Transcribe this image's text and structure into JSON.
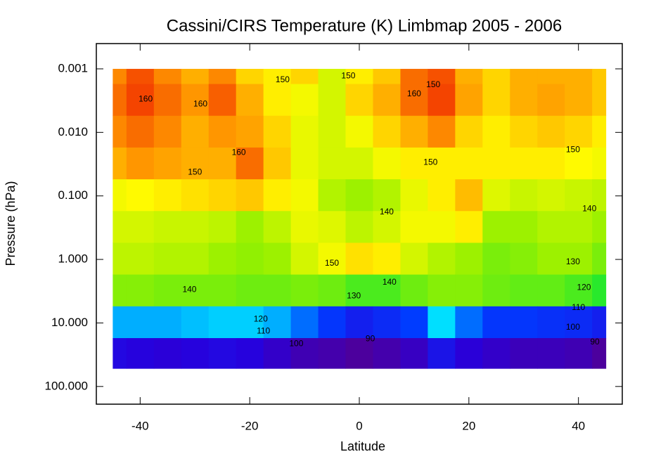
{
  "chart_data": {
    "type": "contour",
    "title": "Cassini/CIRS Temperature (K) Limbmap 2005 - 2006",
    "xlabel": "Latitude",
    "ylabel": "Pressure (hPa)",
    "xlim": [
      -48,
      48
    ],
    "xticks": [
      -40,
      -20,
      0,
      20,
      40
    ],
    "ylim": [
      0.0004,
      190
    ],
    "ylog": true,
    "yreversed": true,
    "yticks": [
      {
        "value": 0.001,
        "label": "0.001"
      },
      {
        "value": 0.01,
        "label": "0.010"
      },
      {
        "value": 0.1,
        "label": "0.100"
      },
      {
        "value": 1,
        "label": "1.000"
      },
      {
        "value": 10,
        "label": "10.000"
      },
      {
        "value": 100,
        "label": "100.000"
      }
    ],
    "zlim": [
      85,
      165
    ],
    "latitude": [
      -45,
      -40,
      -35,
      -30,
      -25,
      -20,
      -15,
      -10,
      -5,
      0,
      5,
      10,
      15,
      20,
      25,
      30,
      35,
      40,
      45
    ],
    "pressure": [
      0.001,
      0.003,
      0.01,
      0.03,
      0.1,
      0.3,
      1,
      3,
      10,
      30
    ],
    "temperature": [
      [
        158,
        162,
        158,
        155,
        158,
        152,
        150,
        152,
        145,
        150,
        153,
        160,
        162,
        155,
        152,
        155,
        155,
        155,
        153
      ],
      [
        160,
        163,
        160,
        157,
        161,
        155,
        150,
        148,
        145,
        152,
        155,
        160,
        163,
        156,
        152,
        155,
        156,
        155,
        153
      ],
      [
        158,
        160,
        158,
        155,
        157,
        156,
        152,
        147,
        145,
        148,
        152,
        155,
        158,
        152,
        150,
        152,
        153,
        152,
        150
      ],
      [
        155,
        157,
        156,
        155,
        155,
        160,
        153,
        147,
        145,
        145,
        148,
        150,
        150,
        150,
        150,
        150,
        150,
        149,
        148
      ],
      [
        148,
        149,
        150,
        151,
        152,
        153,
        150,
        148,
        142,
        140,
        142,
        147,
        150,
        154,
        146,
        144,
        145,
        144,
        143
      ],
      [
        145,
        145,
        144,
        144,
        143,
        140,
        143,
        147,
        146,
        143,
        145,
        148,
        148,
        150,
        140,
        140,
        142,
        142,
        140
      ],
      [
        143,
        143,
        142,
        142,
        140,
        139,
        140,
        145,
        148,
        151,
        150,
        145,
        142,
        140,
        137,
        138,
        140,
        140,
        137
      ],
      [
        138,
        138,
        137,
        137,
        137,
        136,
        136,
        137,
        136,
        133,
        133,
        136,
        138,
        138,
        136,
        135,
        135,
        133,
        130
      ],
      [
        112,
        112,
        112,
        113,
        114,
        114,
        112,
        108,
        104,
        100,
        102,
        105,
        115,
        108,
        104,
        104,
        103,
        102,
        100
      ],
      [
        96,
        95,
        94,
        95,
        96,
        95,
        92,
        89,
        88,
        86,
        88,
        91,
        98,
        94,
        92,
        90,
        90,
        89,
        86
      ]
    ],
    "contour_labels": [
      {
        "value": 160,
        "lat": -39,
        "pressure": 0.003
      },
      {
        "value": 160,
        "lat": -29,
        "pressure": 0.0036
      },
      {
        "value": 160,
        "lat": -22,
        "pressure": 0.021
      },
      {
        "value": 150,
        "lat": -14,
        "pressure": 0.0015
      },
      {
        "value": 150,
        "lat": -2,
        "pressure": 0.0013
      },
      {
        "value": 160,
        "lat": 10,
        "pressure": 0.0025
      },
      {
        "value": 150,
        "lat": 13.5,
        "pressure": 0.0018
      },
      {
        "value": 150,
        "lat": 39,
        "pressure": 0.019
      },
      {
        "value": 150,
        "lat": 13,
        "pressure": 0.03
      },
      {
        "value": 150,
        "lat": -30,
        "pressure": 0.043
      },
      {
        "value": 140,
        "lat": 5,
        "pressure": 0.18
      },
      {
        "value": 140,
        "lat": 42,
        "pressure": 0.16
      },
      {
        "value": 150,
        "lat": -5,
        "pressure": 1.16
      },
      {
        "value": 140,
        "lat": -31,
        "pressure": 3.0
      },
      {
        "value": 140,
        "lat": 5.5,
        "pressure": 2.3
      },
      {
        "value": 130,
        "lat": -1,
        "pressure": 3.8
      },
      {
        "value": 130,
        "lat": 39,
        "pressure": 1.1
      },
      {
        "value": 120,
        "lat": 41,
        "pressure": 2.8
      },
      {
        "value": 110,
        "lat": 40,
        "pressure": 5.8
      },
      {
        "value": 100,
        "lat": 39,
        "pressure": 11.7
      },
      {
        "value": 90,
        "lat": 43,
        "pressure": 20
      },
      {
        "value": 120,
        "lat": -18,
        "pressure": 8.8
      },
      {
        "value": 110,
        "lat": -17.5,
        "pressure": 13.5
      },
      {
        "value": 100,
        "lat": -11.5,
        "pressure": 21.5
      },
      {
        "value": 90,
        "lat": 2,
        "pressure": 18
      }
    ]
  }
}
